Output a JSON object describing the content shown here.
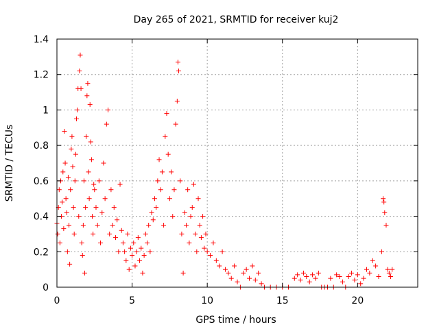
{
  "chart_data": {
    "type": "scatter",
    "title": "Day 265 of 2021, SRMTID for receiver kuj2",
    "xlabel": "GPS time / hours",
    "ylabel": "SRMTID / TECUs",
    "xlim": [
      0,
      24
    ],
    "ylim": [
      0,
      1.4
    ],
    "x_ticks": [
      0,
      5,
      10,
      15,
      20
    ],
    "x_tick_labels": [
      "0",
      "5",
      "10",
      "15",
      "20"
    ],
    "y_ticks": [
      0,
      0.2,
      0.4,
      0.6,
      0.8,
      1,
      1.2,
      1.4
    ],
    "y_tick_labels": [
      "0",
      "0.2",
      "0.4",
      "0.6",
      "0.8",
      "1",
      "1.2",
      "1.4"
    ],
    "grid": true,
    "marker": "+",
    "series": [
      {
        "name": "SRMTID",
        "color": "#ff0000",
        "points": [
          [
            0.0,
            0.36
          ],
          [
            0.05,
            0.3
          ],
          [
            0.1,
            0.45
          ],
          [
            0.15,
            0.55
          ],
          [
            0.2,
            0.25
          ],
          [
            0.25,
            0.6
          ],
          [
            0.3,
            0.4
          ],
          [
            0.35,
            0.48
          ],
          [
            0.4,
            0.65
          ],
          [
            0.45,
            0.33
          ],
          [
            0.5,
            0.88
          ],
          [
            0.55,
            0.7
          ],
          [
            0.6,
            0.5
          ],
          [
            0.65,
            0.42
          ],
          [
            0.7,
            0.2
          ],
          [
            0.75,
            0.62
          ],
          [
            0.8,
            0.35
          ],
          [
            0.85,
            0.13
          ],
          [
            0.9,
            0.55
          ],
          [
            0.95,
            0.78
          ],
          [
            1.0,
            0.85
          ],
          [
            1.05,
            0.68
          ],
          [
            1.1,
            0.45
          ],
          [
            1.15,
            0.3
          ],
          [
            1.2,
            0.6
          ],
          [
            1.25,
            0.75
          ],
          [
            1.3,
            0.95
          ],
          [
            1.35,
            1.0
          ],
          [
            1.4,
            1.12
          ],
          [
            1.45,
            0.4
          ],
          [
            1.5,
            1.22
          ],
          [
            1.55,
            1.31
          ],
          [
            1.6,
            1.12
          ],
          [
            1.65,
            0.25
          ],
          [
            1.7,
            0.18
          ],
          [
            1.75,
            0.35
          ],
          [
            1.8,
            0.6
          ],
          [
            1.85,
            0.08
          ],
          [
            1.9,
            0.45
          ],
          [
            1.95,
            0.85
          ],
          [
            2.0,
            1.08
          ],
          [
            2.05,
            1.15
          ],
          [
            2.1,
            0.65
          ],
          [
            2.15,
            0.5
          ],
          [
            2.2,
            1.03
          ],
          [
            2.25,
            0.82
          ],
          [
            2.3,
            0.72
          ],
          [
            2.35,
            0.4
          ],
          [
            2.4,
            0.3
          ],
          [
            2.45,
            0.58
          ],
          [
            2.5,
            0.55
          ],
          [
            2.6,
            0.45
          ],
          [
            2.7,
            0.35
          ],
          [
            2.8,
            0.6
          ],
          [
            2.9,
            0.25
          ],
          [
            3.0,
            0.42
          ],
          [
            3.1,
            0.7
          ],
          [
            3.2,
            0.5
          ],
          [
            3.3,
            0.92
          ],
          [
            3.4,
            1.0
          ],
          [
            3.5,
            0.3
          ],
          [
            3.6,
            0.55
          ],
          [
            3.7,
            0.35
          ],
          [
            3.8,
            0.45
          ],
          [
            3.9,
            0.28
          ],
          [
            4.0,
            0.38
          ],
          [
            4.1,
            0.2
          ],
          [
            4.2,
            0.58
          ],
          [
            4.3,
            0.32
          ],
          [
            4.4,
            0.25
          ],
          [
            4.5,
            0.2
          ],
          [
            4.6,
            0.15
          ],
          [
            4.7,
            0.3
          ],
          [
            4.8,
            0.1
          ],
          [
            4.9,
            0.22
          ],
          [
            5.0,
            0.18
          ],
          [
            5.1,
            0.25
          ],
          [
            5.2,
            0.12
          ],
          [
            5.3,
            0.2
          ],
          [
            5.4,
            0.28
          ],
          [
            5.5,
            0.15
          ],
          [
            5.6,
            0.22
          ],
          [
            5.7,
            0.08
          ],
          [
            5.8,
            0.18
          ],
          [
            5.9,
            0.3
          ],
          [
            6.0,
            0.25
          ],
          [
            6.1,
            0.35
          ],
          [
            6.2,
            0.2
          ],
          [
            6.3,
            0.42
          ],
          [
            6.4,
            0.38
          ],
          [
            6.5,
            0.5
          ],
          [
            6.6,
            0.45
          ],
          [
            6.7,
            0.6
          ],
          [
            6.8,
            0.72
          ],
          [
            6.9,
            0.55
          ],
          [
            7.0,
            0.65
          ],
          [
            7.1,
            0.35
          ],
          [
            7.2,
            0.85
          ],
          [
            7.3,
            0.98
          ],
          [
            7.4,
            0.75
          ],
          [
            7.5,
            0.5
          ],
          [
            7.6,
            0.65
          ],
          [
            7.7,
            0.4
          ],
          [
            7.8,
            0.55
          ],
          [
            7.9,
            0.92
          ],
          [
            8.0,
            1.05
          ],
          [
            8.05,
            1.27
          ],
          [
            8.1,
            1.22
          ],
          [
            8.2,
            0.6
          ],
          [
            8.3,
            0.3
          ],
          [
            8.4,
            0.08
          ],
          [
            8.5,
            0.42
          ],
          [
            8.6,
            0.35
          ],
          [
            8.7,
            0.55
          ],
          [
            8.8,
            0.25
          ],
          [
            8.9,
            0.4
          ],
          [
            9.0,
            0.45
          ],
          [
            9.1,
            0.58
          ],
          [
            9.2,
            0.3
          ],
          [
            9.3,
            0.2
          ],
          [
            9.4,
            0.5
          ],
          [
            9.5,
            0.35
          ],
          [
            9.6,
            0.28
          ],
          [
            9.7,
            0.4
          ],
          [
            9.8,
            0.22
          ],
          [
            9.9,
            0.3
          ],
          [
            10.0,
            0.2
          ],
          [
            10.2,
            0.18
          ],
          [
            10.4,
            0.25
          ],
          [
            10.6,
            0.15
          ],
          [
            10.8,
            0.12
          ],
          [
            11.0,
            0.2
          ],
          [
            11.2,
            0.1
          ],
          [
            11.4,
            0.08
          ],
          [
            11.6,
            0.05
          ],
          [
            11.8,
            0.12
          ],
          [
            12.0,
            0.03
          ],
          [
            12.2,
            0.0
          ],
          [
            12.4,
            0.08
          ],
          [
            12.6,
            0.1
          ],
          [
            12.8,
            0.05
          ],
          [
            13.0,
            0.12
          ],
          [
            13.2,
            0.04
          ],
          [
            13.4,
            0.08
          ],
          [
            13.6,
            0.02
          ],
          [
            13.8,
            0.0
          ],
          [
            14.2,
            0.0
          ],
          [
            14.6,
            0.0
          ],
          [
            15.0,
            0.0
          ],
          [
            15.4,
            0.0
          ],
          [
            15.8,
            0.05
          ],
          [
            16.0,
            0.07
          ],
          [
            16.2,
            0.04
          ],
          [
            16.4,
            0.08
          ],
          [
            16.6,
            0.06
          ],
          [
            16.8,
            0.03
          ],
          [
            17.0,
            0.07
          ],
          [
            17.2,
            0.05
          ],
          [
            17.4,
            0.08
          ],
          [
            17.6,
            0.0
          ],
          [
            17.8,
            0.0
          ],
          [
            18.0,
            0.0
          ],
          [
            18.2,
            0.05
          ],
          [
            18.4,
            0.0
          ],
          [
            18.6,
            0.07
          ],
          [
            18.8,
            0.06
          ],
          [
            19.0,
            0.03
          ],
          [
            19.2,
            0.0
          ],
          [
            19.4,
            0.06
          ],
          [
            19.6,
            0.08
          ],
          [
            19.8,
            0.04
          ],
          [
            20.0,
            0.07
          ],
          [
            20.2,
            0.02
          ],
          [
            20.4,
            0.05
          ],
          [
            20.6,
            0.1
          ],
          [
            20.8,
            0.08
          ],
          [
            21.0,
            0.15
          ],
          [
            21.2,
            0.12
          ],
          [
            21.4,
            0.06
          ],
          [
            21.6,
            0.2
          ],
          [
            21.7,
            0.5
          ],
          [
            21.75,
            0.48
          ],
          [
            21.8,
            0.42
          ],
          [
            21.9,
            0.35
          ],
          [
            22.0,
            0.1
          ],
          [
            22.1,
            0.08
          ],
          [
            22.2,
            0.06
          ],
          [
            22.3,
            0.1
          ]
        ]
      }
    ]
  }
}
